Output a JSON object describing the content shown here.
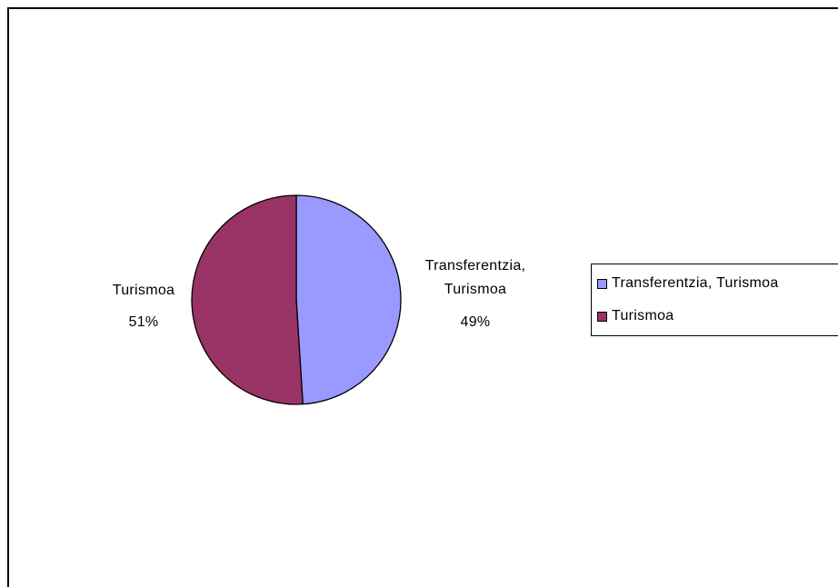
{
  "chart_data": {
    "type": "pie",
    "categories": [
      "Transferentzia, Turismoa",
      "Turismoa"
    ],
    "values": [
      49,
      51
    ],
    "value_labels": [
      "49%",
      "51%"
    ],
    "colors": [
      "#9999ff",
      "#993366"
    ],
    "legend": "right"
  }
}
